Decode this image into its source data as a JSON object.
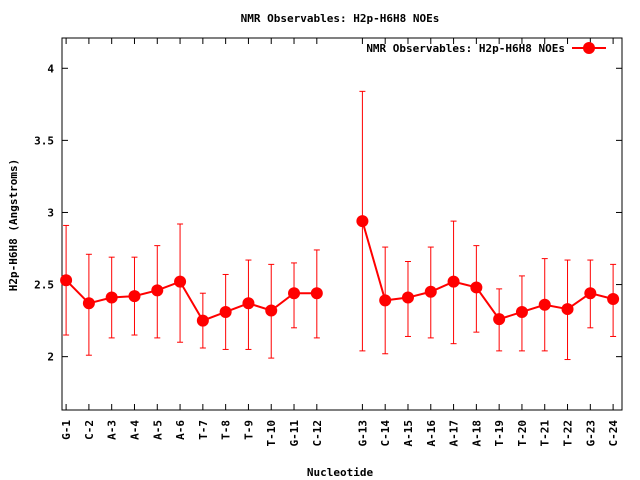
{
  "chart_data": {
    "type": "line",
    "title": "NMR Observables: H2p-H6H8 NOEs",
    "xlabel": "Nucleotide",
    "ylabel": "H2p-H6H8 (Angstroms)",
    "ylim": [
      1.63,
      4.21
    ],
    "xlim": [
      0.82,
      25.39
    ],
    "yticks": [
      "2",
      "2.5",
      "3",
      "3.5",
      "4"
    ],
    "ytick_values": [
      2,
      2.5,
      3,
      3.5,
      4
    ],
    "legend": {
      "label": "NMR Observables: H2p-H6H8 NOEs",
      "placement": "top-right"
    },
    "series_color": "#ff0000",
    "categories": [
      "G-1",
      "C-2",
      "A-3",
      "A-4",
      "A-5",
      "A-6",
      "T-7",
      "T-8",
      "T-9",
      "T-10",
      "G-11",
      "C-12",
      "G-13",
      "C-14",
      "A-15",
      "A-16",
      "A-17",
      "A-18",
      "T-19",
      "T-20",
      "T-21",
      "T-22",
      "G-23",
      "C-24"
    ],
    "x": [
      1,
      2,
      3,
      4,
      5,
      6,
      7,
      8,
      9,
      10,
      11,
      12,
      14,
      15,
      16,
      17,
      18,
      19,
      20,
      21,
      22,
      23,
      24,
      25
    ],
    "segments": [
      [
        0,
        11
      ],
      [
        12,
        23
      ]
    ],
    "values": [
      2.53,
      2.37,
      2.41,
      2.42,
      2.46,
      2.52,
      2.25,
      2.31,
      2.37,
      2.32,
      2.44,
      2.44,
      2.94,
      2.39,
      2.41,
      2.45,
      2.52,
      2.48,
      2.26,
      2.31,
      2.36,
      2.33,
      2.44,
      2.4
    ],
    "err_high": [
      2.91,
      2.71,
      2.69,
      2.69,
      2.77,
      2.92,
      2.44,
      2.57,
      2.67,
      2.64,
      2.65,
      2.74,
      3.84,
      2.76,
      2.66,
      2.76,
      2.94,
      2.77,
      2.47,
      2.56,
      2.68,
      2.67,
      2.67,
      2.64
    ],
    "err_low": [
      2.15,
      2.01,
      2.13,
      2.15,
      2.13,
      2.1,
      2.06,
      2.05,
      2.05,
      1.99,
      2.2,
      2.13,
      2.04,
      2.02,
      2.14,
      2.13,
      2.09,
      2.17,
      2.04,
      2.04,
      2.04,
      1.98,
      2.2,
      2.14
    ]
  }
}
